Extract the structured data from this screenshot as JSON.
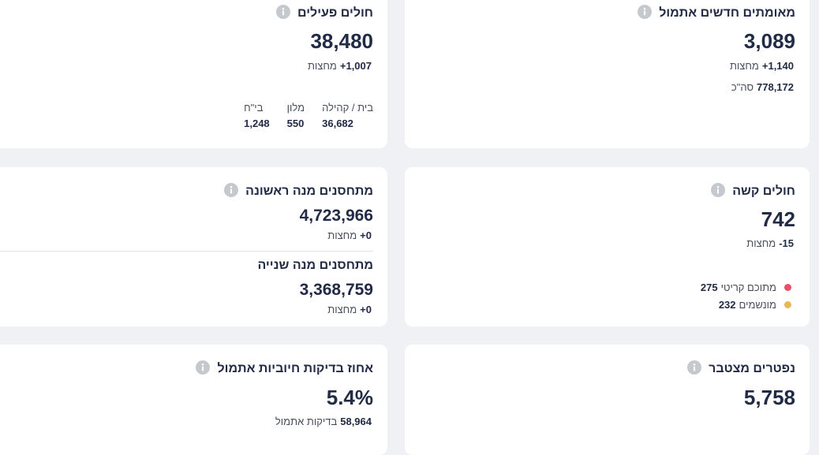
{
  "cards": [
    {
      "title": "מאומתים חדשים אתמול",
      "value": "3,089",
      "change": "+1,140",
      "change_label": "מחצות",
      "total": "778,172",
      "total_label": "סה\"כ"
    },
    {
      "title": "חולים פעילים",
      "value": "38,480",
      "change": "+1,007",
      "change_label": "מחצות",
      "breakdown": [
        {
          "label": "בית / קהילה",
          "value": "36,682"
        },
        {
          "label": "מלון",
          "value": "550"
        },
        {
          "label": "בי\"ח",
          "value": "1,248"
        }
      ]
    },
    {
      "title": "חולים קשה",
      "value": "742",
      "change": "-15",
      "change_label": "מחצות",
      "breakdown": [
        {
          "label": "מתוכם קריטי",
          "value": "275",
          "color": "#e8506a"
        },
        {
          "label": "מונשמים",
          "value": "232",
          "color": "#e8b756"
        }
      ]
    },
    {
      "sections": [
        {
          "title": "מתחסנים מנה ראשונה",
          "value": "4,723,966",
          "change": "+0",
          "change_label": "מחצות"
        },
        {
          "title": "מתחסנים מנה שנייה",
          "value": "3,368,759",
          "change": "+0",
          "change_label": "מחצות"
        }
      ]
    },
    {
      "title": "נפטרים מצטבר",
      "value": "5,758"
    },
    {
      "title": "אחוז בדיקות חיוביות אתמול",
      "value": "5.4%",
      "detail": "58,964",
      "detail_label": "בדיקות אתמול"
    }
  ]
}
